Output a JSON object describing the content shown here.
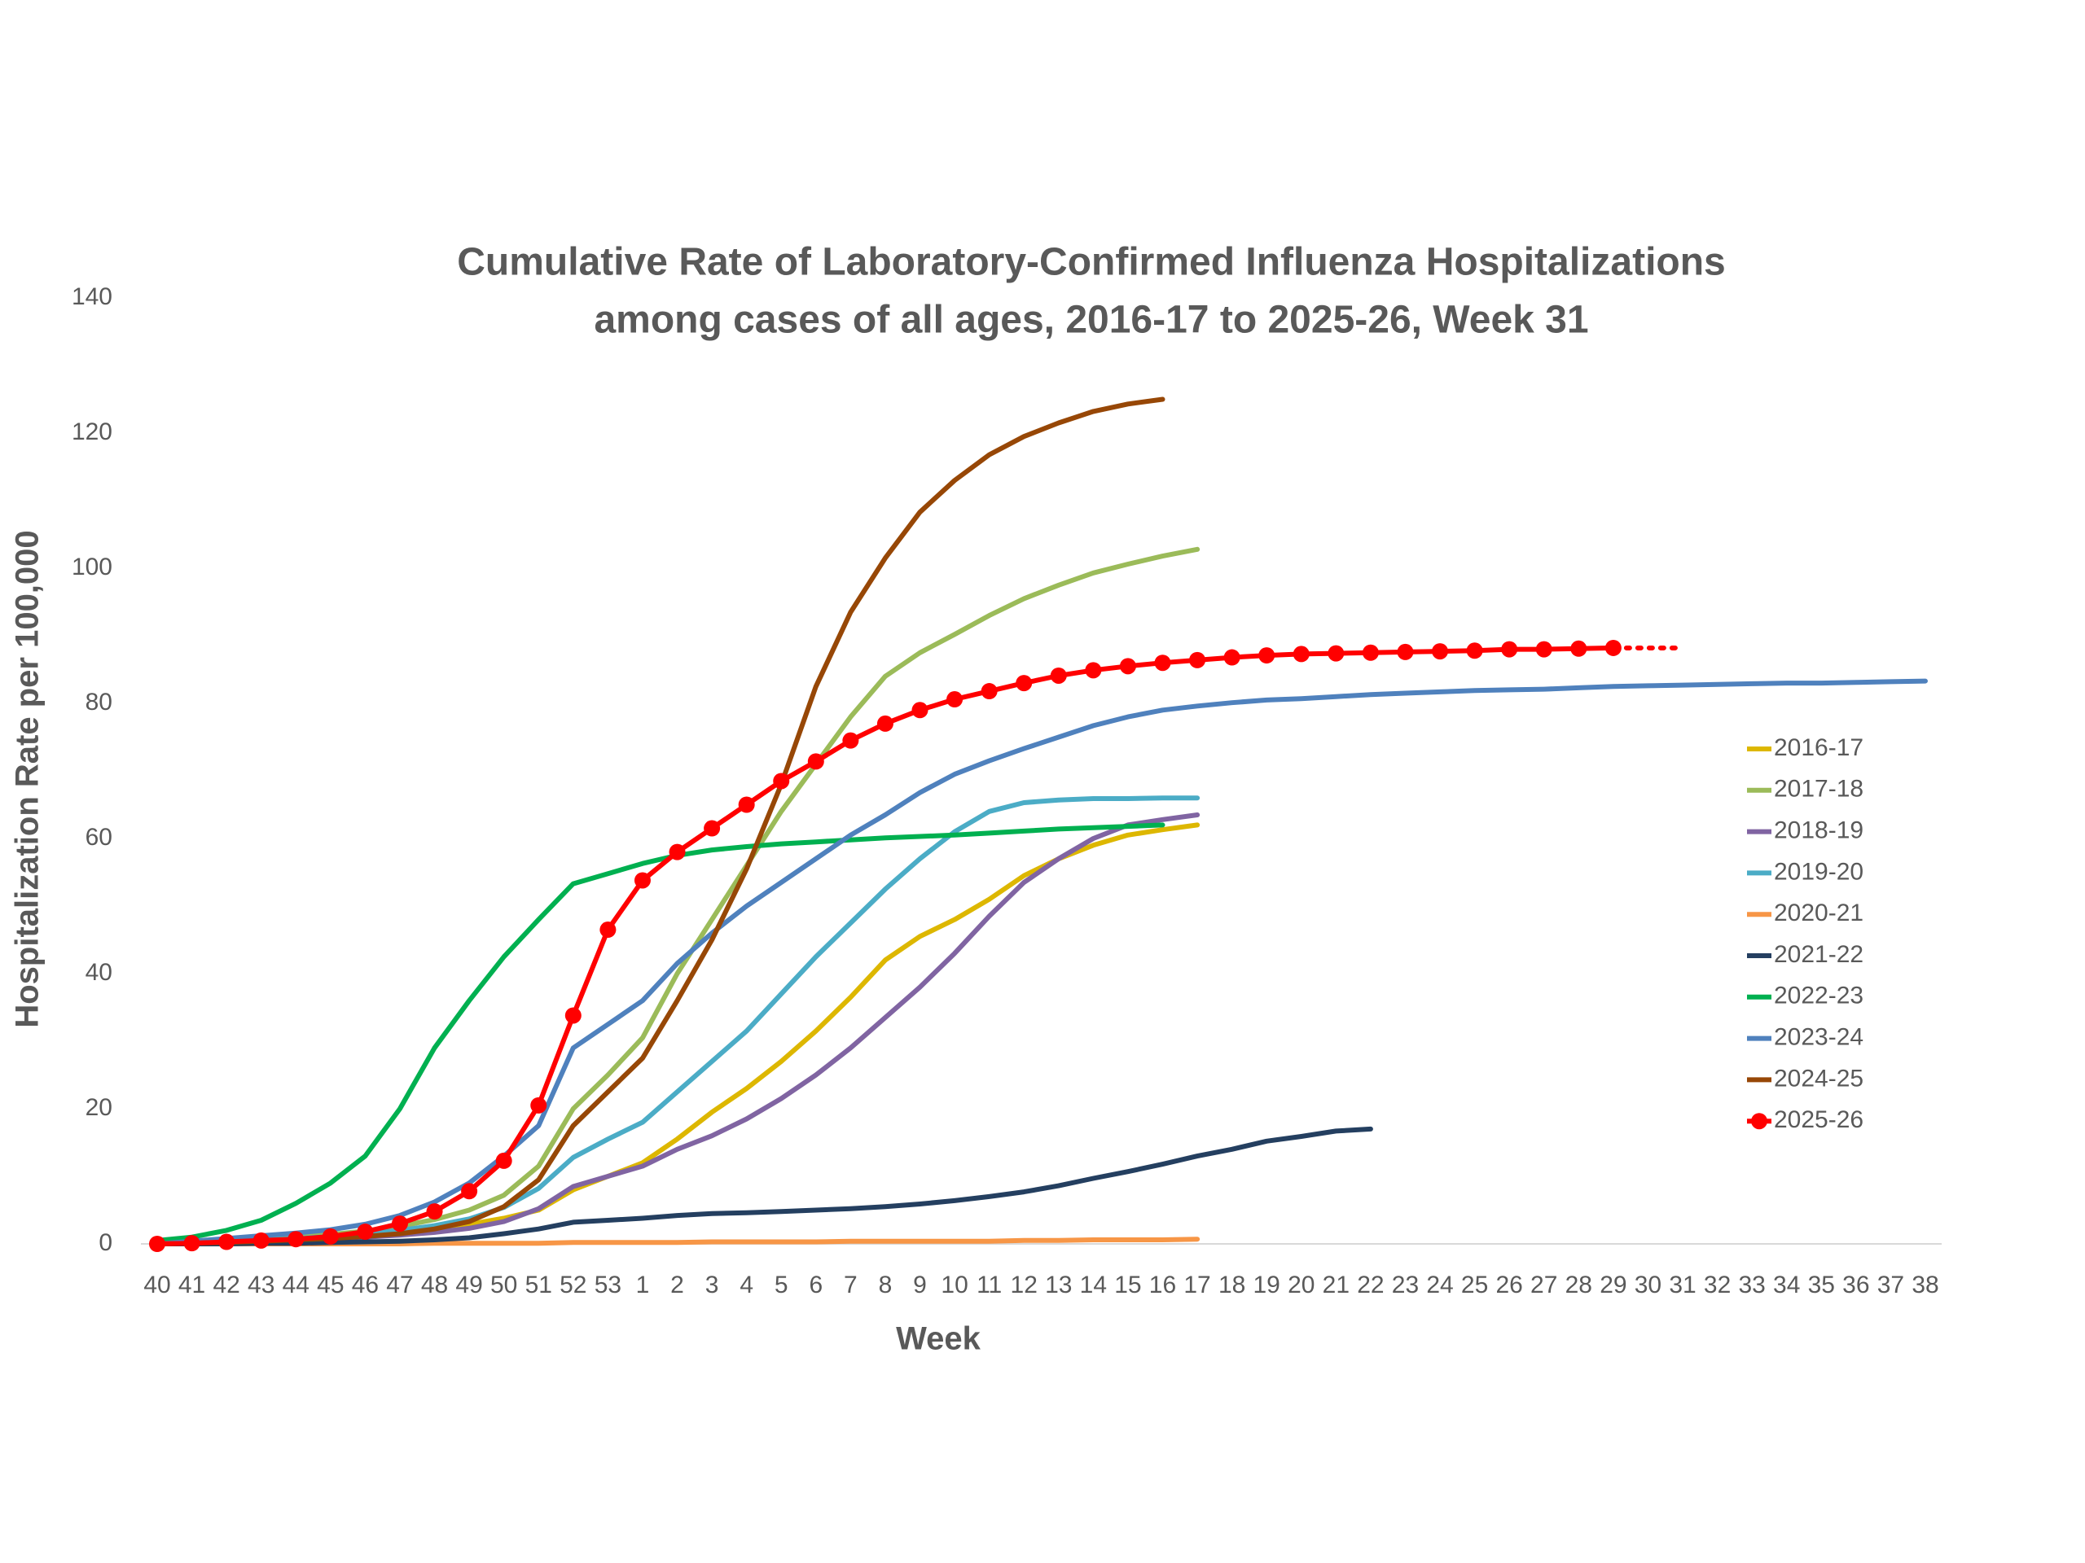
{
  "chart_data": {
    "type": "line",
    "title": "Cumulative Rate of Laboratory-Confirmed Influenza Hospitalizations",
    "subtitle": "among cases of all ages, 2016-17 to 2025-26, Week 31",
    "x_label": "Week",
    "y_label": "Hospitalization Rate per 100,000",
    "categories": [
      "40",
      "41",
      "42",
      "43",
      "44",
      "45",
      "46",
      "47",
      "48",
      "49",
      "50",
      "51",
      "52",
      "53",
      "1",
      "2",
      "3",
      "4",
      "5",
      "6",
      "7",
      "8",
      "9",
      "10",
      "11",
      "12",
      "13",
      "14",
      "15",
      "16",
      "17",
      "18",
      "19",
      "20",
      "21",
      "22",
      "23",
      "24",
      "25",
      "26",
      "27",
      "28",
      "29",
      "30",
      "31",
      "32",
      "33",
      "34",
      "35",
      "36",
      "37",
      "38"
    ],
    "ylim": [
      0,
      140
    ],
    "yticks": [
      0,
      20,
      40,
      60,
      80,
      100,
      120,
      140
    ],
    "grid": false,
    "legend": "right",
    "series": [
      {
        "name": "2016-17",
        "color": "#DDB700",
        "values": [
          0,
          0.2,
          0.4,
          0.6,
          0.8,
          1.0,
          1.3,
          1.7,
          2.2,
          2.9,
          3.8,
          5.0,
          8.0,
          10.0,
          12.0,
          15.5,
          19.5,
          23.0,
          27.0,
          31.5,
          36.5,
          42.0,
          45.5,
          48.0,
          51.0,
          54.5,
          57.0,
          59.0,
          60.5,
          61.3,
          62.0,
          null,
          null,
          null,
          null,
          null,
          null,
          null,
          null,
          null,
          null,
          null,
          null,
          null,
          null,
          null,
          null,
          null,
          null,
          null,
          null,
          null
        ]
      },
      {
        "name": "2017-18",
        "color": "#9BBB59",
        "values": [
          0,
          0.2,
          0.4,
          0.7,
          1.0,
          1.4,
          1.9,
          2.6,
          3.6,
          5.0,
          7.2,
          11.5,
          20,
          25,
          30.5,
          40,
          48,
          56,
          64,
          71,
          78,
          84,
          87.5,
          90.2,
          93,
          95.5,
          97.5,
          99.3,
          100.6,
          101.8,
          102.8,
          null,
          null,
          null,
          null,
          null,
          null,
          null,
          null,
          null,
          null,
          null,
          null,
          null,
          null,
          null,
          null,
          null,
          null,
          null,
          null,
          null
        ]
      },
      {
        "name": "2018-19",
        "color": "#8064A2",
        "values": [
          0,
          0.1,
          0.2,
          0.4,
          0.6,
          0.8,
          1.0,
          1.3,
          1.7,
          2.3,
          3.3,
          5.2,
          8.5,
          10,
          11.5,
          14,
          16,
          18.5,
          21.5,
          25,
          29,
          33.5,
          38,
          43,
          48.5,
          53.5,
          57,
          60,
          62,
          62.8,
          63.5,
          null,
          null,
          null,
          null,
          null,
          null,
          null,
          null,
          null,
          null,
          null,
          null,
          null,
          null,
          null,
          null,
          null,
          null,
          null,
          null,
          null
        ]
      },
      {
        "name": "2019-20",
        "color": "#4BACC6",
        "values": [
          0,
          0.1,
          0.3,
          0.5,
          0.8,
          1.1,
          1.5,
          2,
          2.7,
          3.7,
          5.4,
          8.2,
          12.8,
          15.5,
          18,
          22.5,
          27,
          31.5,
          37,
          42.5,
          47.5,
          52.5,
          57,
          61,
          64,
          65.3,
          65.7,
          65.9,
          65.9,
          66,
          66,
          null,
          null,
          null,
          null,
          null,
          null,
          null,
          null,
          null,
          null,
          null,
          null,
          null,
          null,
          null,
          null,
          null,
          null,
          null,
          null,
          null
        ]
      },
      {
        "name": "2020-21",
        "color": "#F79646",
        "values": [
          0,
          0,
          0,
          0,
          0,
          0,
          0,
          0,
          0.1,
          0.1,
          0.1,
          0.1,
          0.2,
          0.2,
          0.2,
          0.2,
          0.3,
          0.3,
          0.3,
          0.3,
          0.4,
          0.4,
          0.4,
          0.4,
          0.4,
          0.5,
          0.5,
          0.6,
          0.6,
          0.6,
          0.7,
          null,
          null,
          null,
          null,
          null,
          null,
          null,
          null,
          null,
          null,
          null,
          null,
          null,
          null,
          null,
          null,
          null,
          null,
          null,
          null,
          null
        ]
      },
      {
        "name": "2021-22",
        "color": "#243F60",
        "values": [
          0,
          0,
          0,
          0.1,
          0.1,
          0.2,
          0.3,
          0.4,
          0.6,
          0.9,
          1.5,
          2.2,
          3.2,
          3.5,
          3.8,
          4.2,
          4.5,
          4.6,
          4.8,
          5.0,
          5.2,
          5.5,
          5.9,
          6.4,
          7.0,
          7.7,
          8.6,
          9.7,
          10.7,
          11.8,
          13.0,
          14.0,
          15.2,
          15.9,
          16.7,
          17.0,
          null,
          null,
          null,
          null,
          null,
          null,
          null,
          null,
          null,
          null,
          null,
          null,
          null,
          null,
          null,
          null
        ]
      },
      {
        "name": "2022-23",
        "color": "#00B050",
        "values": [
          0.5,
          1.0,
          2.0,
          3.5,
          6,
          9,
          13,
          20,
          29,
          36,
          42.5,
          48,
          53.3,
          54.8,
          56.3,
          57.5,
          58.3,
          58.8,
          59.2,
          59.5,
          59.8,
          60.1,
          60.3,
          60.5,
          60.8,
          61.1,
          61.4,
          61.6,
          61.8,
          62,
          null,
          null,
          null,
          null,
          null,
          null,
          null,
          null,
          null,
          null,
          null,
          null,
          null,
          null,
          null,
          null,
          null,
          null,
          null,
          null,
          null,
          null
        ]
      },
      {
        "name": "2023-24",
        "color": "#4F81BD",
        "values": [
          0,
          0.4,
          0.8,
          1.2,
          1.6,
          2.1,
          2.9,
          4.2,
          6.2,
          9,
          13,
          17.5,
          29,
          32.5,
          36,
          41.5,
          46,
          50,
          53.5,
          57,
          60.5,
          63.5,
          66.8,
          69.5,
          71.5,
          73.3,
          75,
          76.7,
          78,
          79,
          79.6,
          80.1,
          80.5,
          80.7,
          81,
          81.3,
          81.5,
          81.7,
          81.9,
          82,
          82.1,
          82.3,
          82.5,
          82.6,
          82.7,
          82.8,
          82.9,
          83,
          83,
          83.1,
          83.2,
          83.3
        ]
      },
      {
        "name": "2024-25",
        "color": "#974706",
        "values": [
          0,
          0.1,
          0.2,
          0.4,
          0.6,
          0.8,
          1.1,
          1.5,
          2.2,
          3.3,
          5.5,
          9.5,
          17.5,
          22.5,
          27.5,
          36,
          45,
          55.5,
          68,
          82.5,
          93.5,
          101.5,
          108.3,
          113,
          116.8,
          119.5,
          121.5,
          123.2,
          124.3,
          125,
          null,
          null,
          null,
          null,
          null,
          null,
          null,
          null,
          null,
          null,
          null,
          null,
          null,
          null,
          null,
          null,
          null,
          null,
          null,
          null,
          null,
          null
        ]
      },
      {
        "name": "2025-26",
        "color": "#FF0000",
        "markers": true,
        "values": [
          0,
          0.1,
          0.3,
          0.5,
          0.7,
          1.1,
          1.8,
          3.0,
          4.8,
          7.8,
          12.3,
          20.5,
          33.8,
          46.5,
          53.8,
          58,
          61.5,
          65,
          68.5,
          71.4,
          74.5,
          77,
          79,
          80.6,
          81.8,
          83,
          84.1,
          84.9,
          85.5,
          86,
          86.4,
          86.8,
          87.1,
          87.3,
          87.4,
          87.5,
          87.6,
          87.7,
          87.8,
          88,
          88,
          88.1,
          88.2,
          null,
          null,
          null,
          null,
          null,
          null,
          null,
          null,
          null
        ]
      }
    ]
  }
}
